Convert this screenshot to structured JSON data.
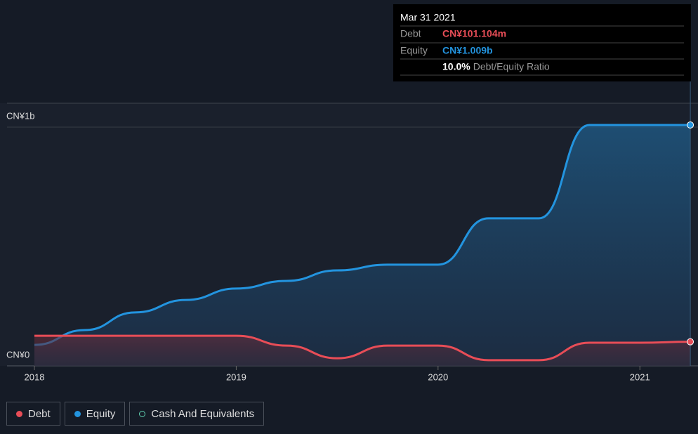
{
  "chart_data": {
    "type": "line",
    "x": [
      2018,
      2018.25,
      2018.5,
      2018.75,
      2019,
      2019.25,
      2019.5,
      2019.75,
      2020,
      2020.25,
      2020.5,
      2020.75,
      2021,
      2021.25
    ],
    "series": [
      {
        "name": "Debt",
        "color": "#e84d57",
        "values": [
          0.126,
          0.126,
          0.126,
          0.126,
          0.126,
          0.085,
          0.032,
          0.085,
          0.085,
          0.024,
          0.024,
          0.097,
          0.097,
          0.101
        ]
      },
      {
        "name": "Equity",
        "color": "#2394df",
        "values": [
          0.088,
          0.15,
          0.224,
          0.276,
          0.324,
          0.356,
          0.4,
          0.424,
          0.424,
          0.618,
          0.618,
          1.009,
          1.009,
          1.009
        ]
      },
      {
        "name": "Cash And Equivalents",
        "color": "#5fd0b0",
        "values": [
          null,
          null,
          null,
          null,
          null,
          null,
          null,
          null,
          null,
          null,
          null,
          null,
          null,
          null
        ]
      }
    ],
    "xlim": [
      2018,
      2021.288
    ],
    "xticks": [
      2018,
      2019,
      2020,
      2021
    ],
    "ylim": [
      0,
      1.1
    ],
    "yticks": [
      {
        "value": 0,
        "label": "CN¥0"
      },
      {
        "value": 1,
        "label": "CN¥1b"
      }
    ],
    "grid": true,
    "tooltip": {
      "date": "Mar 31 2021",
      "rows": [
        {
          "label": "Debt",
          "value": "CN¥101.104m"
        },
        {
          "label": "Equity",
          "value": "CN¥1.009b"
        },
        {
          "value": "10.0%",
          "label": "Debt/Equity Ratio"
        }
      ]
    }
  }
}
